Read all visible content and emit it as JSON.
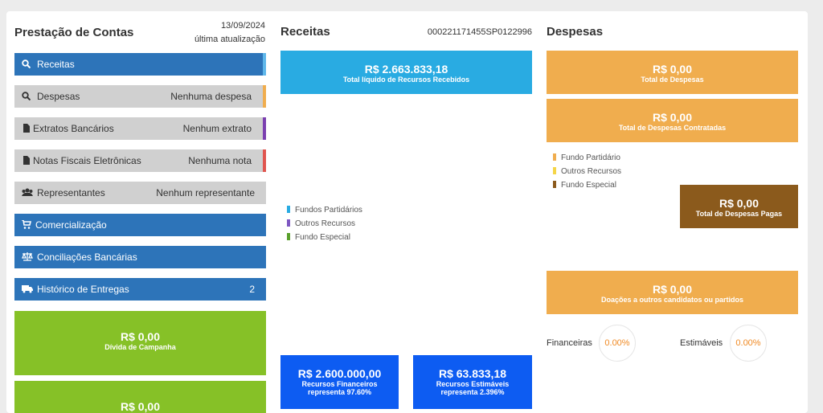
{
  "header": {
    "title": "Prestação de Contas",
    "date": "13/09/2024",
    "updated": "última atualização"
  },
  "menu": [
    {
      "label": "Receitas"
    },
    {
      "label": "Despesas",
      "status": "Nenhuma despesa"
    },
    {
      "label": "Extratos Bancários",
      "status": "Nenhum extrato"
    },
    {
      "label": "Notas Fiscais Eletrônicas",
      "status": "Nenhuma nota"
    },
    {
      "label": "Representantes",
      "status": "Nenhum representante"
    },
    {
      "label": "Comercialização"
    },
    {
      "label": "Conciliações Bancárias"
    },
    {
      "label": "Histórico de Entregas",
      "status": "2"
    }
  ],
  "debt_cards": [
    {
      "value": "R$ 0,00",
      "label": "Dívida de Campanha"
    },
    {
      "value": "R$ 0,00"
    }
  ],
  "receitas": {
    "title": "Receitas",
    "id": "000221171455SP0122996",
    "total": {
      "value": "R$ 2.663.833,18",
      "label": "Total líquido de Recursos Recebidos"
    },
    "legend": [
      "Fundos Partidários",
      "Outros Recursos",
      "Fundo Especial"
    ],
    "cards": [
      {
        "value": "R$ 2.600.000,00",
        "label": "Recursos Financeiros",
        "share": "representa 97.60%"
      },
      {
        "value": "R$ 63.833,18",
        "label": "Recursos Estimáveis",
        "share": "representa 2.396%"
      }
    ]
  },
  "despesas": {
    "title": "Despesas",
    "total": {
      "value": "R$ 0,00",
      "label": "Total de Despesas"
    },
    "contracted": {
      "value": "R$ 0,00",
      "label": "Total de Despesas Contratadas"
    },
    "legend": [
      "Fundo Partidário",
      "Outros Recursos",
      "Fundo Especial"
    ],
    "paid": {
      "value": "R$ 0,00",
      "label": "Total de Despesas Pagas"
    },
    "donations": {
      "value": "R$ 0,00",
      "label": "Doações a outros candidatos ou partidos"
    },
    "gauges": [
      {
        "label": "Financeiras",
        "value": "0.00%"
      },
      {
        "label": "Estimáveis",
        "value": "0.00%"
      }
    ]
  }
}
